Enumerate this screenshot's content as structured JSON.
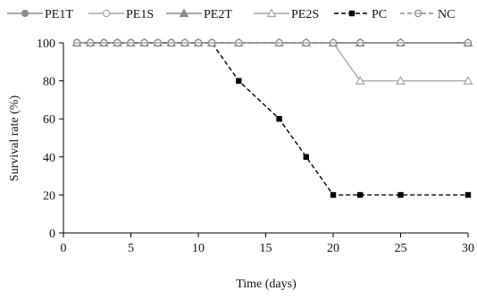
{
  "chart_data": {
    "type": "line",
    "title": "",
    "xlabel": "Time (days)",
    "ylabel": "Survival rate (%)",
    "xlim": [
      0,
      30
    ],
    "ylim": [
      0,
      100
    ],
    "x_ticks": [
      0,
      5,
      10,
      15,
      20,
      25,
      30
    ],
    "y_ticks": [
      0,
      20,
      40,
      60,
      80,
      100
    ],
    "grid": false,
    "legend_position": "top",
    "series": [
      {
        "name": "PE1T",
        "color": "#8c8c8c",
        "marker": "filled-circle",
        "dashed": false,
        "points": [
          [
            1,
            100
          ],
          [
            2,
            100
          ],
          [
            3,
            100
          ],
          [
            4,
            100
          ],
          [
            5,
            100
          ],
          [
            6,
            100
          ],
          [
            7,
            100
          ],
          [
            8,
            100
          ],
          [
            9,
            100
          ],
          [
            10,
            100
          ],
          [
            11,
            100
          ],
          [
            13,
            100
          ],
          [
            16,
            100
          ],
          [
            18,
            100
          ],
          [
            20,
            100
          ],
          [
            22,
            100
          ],
          [
            25,
            100
          ],
          [
            30,
            100
          ]
        ]
      },
      {
        "name": "PE1S",
        "color": "#a6a6a6",
        "marker": "open-circle",
        "dashed": false,
        "points": [
          [
            1,
            100
          ],
          [
            2,
            100
          ],
          [
            3,
            100
          ],
          [
            4,
            100
          ],
          [
            5,
            100
          ],
          [
            6,
            100
          ],
          [
            7,
            100
          ],
          [
            8,
            100
          ],
          [
            9,
            100
          ],
          [
            10,
            100
          ],
          [
            11,
            100
          ],
          [
            13,
            100
          ],
          [
            16,
            100
          ],
          [
            18,
            100
          ],
          [
            20,
            100
          ],
          [
            22,
            100
          ],
          [
            25,
            100
          ],
          [
            30,
            100
          ]
        ]
      },
      {
        "name": "PE2T",
        "color": "#8c8c8c",
        "marker": "filled-triangle",
        "dashed": false,
        "points": [
          [
            1,
            100
          ],
          [
            2,
            100
          ],
          [
            3,
            100
          ],
          [
            4,
            100
          ],
          [
            5,
            100
          ],
          [
            6,
            100
          ],
          [
            7,
            100
          ],
          [
            8,
            100
          ],
          [
            9,
            100
          ],
          [
            10,
            100
          ],
          [
            11,
            100
          ],
          [
            13,
            100
          ],
          [
            16,
            100
          ],
          [
            18,
            100
          ],
          [
            20,
            100
          ],
          [
            22,
            100
          ],
          [
            25,
            100
          ],
          [
            30,
            100
          ]
        ]
      },
      {
        "name": "PE2S",
        "color": "#a6a6a6",
        "marker": "open-triangle",
        "dashed": false,
        "points": [
          [
            1,
            100
          ],
          [
            2,
            100
          ],
          [
            3,
            100
          ],
          [
            4,
            100
          ],
          [
            5,
            100
          ],
          [
            6,
            100
          ],
          [
            7,
            100
          ],
          [
            8,
            100
          ],
          [
            9,
            100
          ],
          [
            10,
            100
          ],
          [
            11,
            100
          ],
          [
            13,
            100
          ],
          [
            16,
            100
          ],
          [
            18,
            100
          ],
          [
            20,
            100
          ],
          [
            22,
            80
          ],
          [
            25,
            80
          ],
          [
            30,
            80
          ]
        ]
      },
      {
        "name": "PC",
        "color": "#000000",
        "marker": "filled-square",
        "dashed": true,
        "points": [
          [
            1,
            100
          ],
          [
            2,
            100
          ],
          [
            3,
            100
          ],
          [
            4,
            100
          ],
          [
            5,
            100
          ],
          [
            6,
            100
          ],
          [
            7,
            100
          ],
          [
            8,
            100
          ],
          [
            9,
            100
          ],
          [
            10,
            100
          ],
          [
            11,
            100
          ],
          [
            13,
            80
          ],
          [
            16,
            60
          ],
          [
            18,
            40
          ],
          [
            20,
            20
          ],
          [
            22,
            20
          ],
          [
            25,
            20
          ],
          [
            30,
            20
          ]
        ]
      },
      {
        "name": "NC",
        "color": "#8c8c8c",
        "marker": "open-circle-dash",
        "dashed": true,
        "points": [
          [
            1,
            100
          ],
          [
            2,
            100
          ],
          [
            3,
            100
          ],
          [
            4,
            100
          ],
          [
            5,
            100
          ],
          [
            6,
            100
          ],
          [
            7,
            100
          ],
          [
            8,
            100
          ],
          [
            9,
            100
          ],
          [
            10,
            100
          ],
          [
            11,
            100
          ],
          [
            13,
            100
          ],
          [
            16,
            100
          ],
          [
            18,
            100
          ],
          [
            20,
            100
          ],
          [
            22,
            100
          ],
          [
            25,
            100
          ],
          [
            30,
            100
          ]
        ]
      }
    ]
  }
}
